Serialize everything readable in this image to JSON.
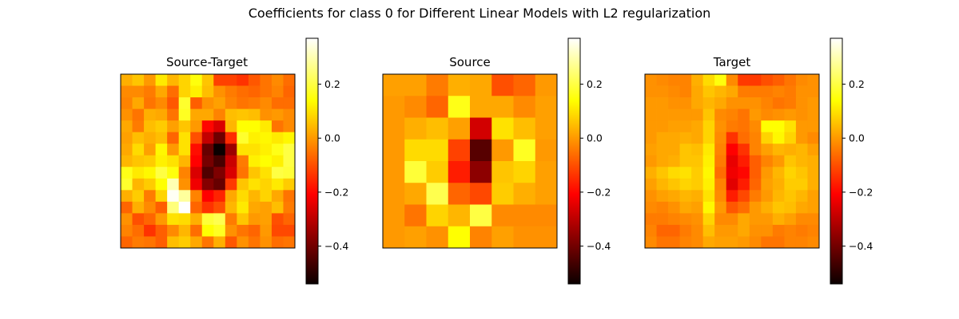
{
  "title": "Coefficients for class 0 for Different Linear Models with L2 regularization",
  "colorscale": {
    "name": "hot",
    "vmin": -0.54,
    "vmax": 0.37,
    "ticks": [
      0.2,
      0.0,
      -0.2,
      -0.4
    ],
    "tick_labels": [
      "0.2",
      "0.0",
      "−0.2",
      "−0.4"
    ]
  },
  "chart_data": [
    {
      "type": "heatmap",
      "title": "Source-Target",
      "xticks": [],
      "yticks": [],
      "values": [
        [
          0.03,
          0.06,
          0.0,
          0.11,
          0.04,
          0.08,
          0.15,
          0.06,
          -0.12,
          -0.12,
          -0.14,
          -0.09,
          -0.05,
          -0.02,
          -0.06
        ],
        [
          -0.02,
          -0.02,
          -0.04,
          0.02,
          -0.06,
          0.08,
          0.12,
          0.05,
          -0.01,
          -0.04,
          -0.06,
          -0.07,
          -0.05,
          -0.03,
          -0.07
        ],
        [
          -0.03,
          0.02,
          -0.05,
          -0.02,
          -0.09,
          0.18,
          -0.08,
          -0.01,
          0.01,
          -0.03,
          -0.05,
          -0.04,
          -0.02,
          -0.06,
          -0.06
        ],
        [
          -0.01,
          -0.05,
          0.03,
          0.02,
          -0.05,
          0.17,
          0.02,
          0.02,
          -0.03,
          0.05,
          0.06,
          0.05,
          -0.01,
          0.0,
          -0.02
        ],
        [
          0.02,
          -0.04,
          0.05,
          0.07,
          0.01,
          0.06,
          0.0,
          -0.2,
          -0.27,
          0.04,
          0.14,
          0.14,
          0.11,
          -0.05,
          -0.02
        ],
        [
          0.01,
          0.05,
          0.03,
          0.05,
          -0.07,
          0.1,
          -0.1,
          -0.3,
          -0.41,
          -0.15,
          0.18,
          0.12,
          0.13,
          0.11,
          0.13
        ],
        [
          0.02,
          0.09,
          0.01,
          0.13,
          0.0,
          0.1,
          -0.19,
          -0.42,
          -0.54,
          -0.35,
          0.1,
          0.1,
          0.12,
          0.16,
          0.2
        ],
        [
          0.04,
          0.06,
          0.07,
          0.12,
          0.1,
          0.04,
          -0.21,
          -0.4,
          -0.46,
          -0.29,
          -0.04,
          0.12,
          0.14,
          0.12,
          0.2
        ],
        [
          0.16,
          0.11,
          0.13,
          0.2,
          0.15,
          -0.03,
          -0.27,
          -0.45,
          -0.39,
          -0.27,
          -0.05,
          0.06,
          0.1,
          0.2,
          0.19
        ],
        [
          0.18,
          0.04,
          0.07,
          0.14,
          0.3,
          -0.01,
          -0.24,
          -0.38,
          -0.42,
          -0.13,
          0.06,
          0.1,
          0.08,
          0.11,
          0.07
        ],
        [
          0.03,
          0.07,
          -0.04,
          0.08,
          0.36,
          0.28,
          -0.03,
          -0.22,
          -0.16,
          0.02,
          0.09,
          0.04,
          0.08,
          0.02,
          -0.05
        ],
        [
          -0.07,
          0.03,
          -0.02,
          -0.08,
          0.25,
          0.37,
          -0.07,
          -0.14,
          -0.1,
          0.04,
          0.11,
          0.02,
          0.01,
          0.05,
          -0.04
        ],
        [
          -0.01,
          -0.1,
          -0.07,
          0.0,
          0.1,
          0.09,
          0.03,
          0.19,
          0.21,
          -0.04,
          0.06,
          0.0,
          0.01,
          -0.1,
          -0.07
        ],
        [
          -0.03,
          -0.06,
          -0.14,
          -0.08,
          -0.02,
          0.04,
          -0.06,
          0.14,
          0.17,
          -0.01,
          -0.05,
          -0.07,
          0.0,
          -0.11,
          -0.11
        ],
        [
          -0.07,
          -0.04,
          -0.05,
          -0.08,
          0.05,
          0.07,
          0.02,
          -0.05,
          0.03,
          -0.09,
          -0.01,
          -0.05,
          -0.01,
          -0.06,
          -0.05
        ]
      ]
    },
    {
      "type": "heatmap",
      "title": "Source",
      "xticks": [],
      "yticks": [],
      "values": [
        [
          0.01,
          0.01,
          -0.04,
          0.03,
          0.02,
          -0.1,
          -0.07,
          0.0
        ],
        [
          0.0,
          -0.02,
          -0.07,
          0.16,
          0.02,
          0.02,
          -0.02,
          0.01
        ],
        [
          0.0,
          0.03,
          0.05,
          0.01,
          -0.28,
          0.1,
          0.05,
          0.01
        ],
        [
          0.0,
          0.09,
          0.09,
          -0.12,
          -0.44,
          0.0,
          0.17,
          0.0
        ],
        [
          0.0,
          0.19,
          0.07,
          -0.17,
          -0.37,
          0.06,
          0.08,
          0.01
        ],
        [
          0.0,
          0.02,
          0.21,
          -0.07,
          -0.11,
          0.07,
          0.03,
          0.01
        ],
        [
          0.0,
          -0.05,
          0.08,
          0.04,
          0.2,
          -0.02,
          -0.02,
          -0.02
        ],
        [
          0.0,
          0.01,
          -0.01,
          0.14,
          -0.03,
          0.01,
          -0.01,
          -0.01
        ]
      ]
    },
    {
      "type": "heatmap",
      "title": "Target",
      "xticks": [],
      "yticks": [],
      "values": [
        [
          -0.01,
          -0.02,
          -0.03,
          -0.03,
          0.03,
          0.09,
          0.15,
          -0.02,
          -0.13,
          -0.13,
          -0.1,
          -0.08,
          -0.05,
          -0.02,
          -0.01
        ],
        [
          -0.01,
          -0.01,
          -0.02,
          -0.03,
          0.02,
          0.06,
          0.04,
          0.02,
          -0.04,
          -0.04,
          -0.04,
          -0.03,
          -0.04,
          -0.01,
          -0.01
        ],
        [
          0.0,
          0.0,
          -0.01,
          -0.01,
          0.02,
          0.04,
          0.02,
          -0.01,
          -0.01,
          -0.01,
          -0.03,
          -0.05,
          -0.04,
          -0.01,
          0.0
        ],
        [
          0.0,
          0.0,
          0.0,
          0.0,
          0.0,
          0.06,
          -0.02,
          -0.03,
          -0.05,
          0.0,
          -0.02,
          -0.01,
          0.0,
          -0.01,
          0.0
        ],
        [
          0.0,
          0.0,
          0.01,
          0.01,
          0.02,
          0.08,
          -0.01,
          -0.04,
          -0.05,
          -0.02,
          0.14,
          0.14,
          0.1,
          0.0,
          0.0
        ],
        [
          0.0,
          0.02,
          0.02,
          0.03,
          0.02,
          0.08,
          -0.02,
          -0.14,
          -0.06,
          -0.03,
          0.08,
          0.13,
          0.08,
          0.0,
          -0.02
        ],
        [
          0.01,
          0.02,
          0.02,
          0.06,
          0.05,
          0.11,
          -0.03,
          -0.21,
          -0.14,
          -0.03,
          0.01,
          0.04,
          0.03,
          0.04,
          0.01
        ],
        [
          0.0,
          0.02,
          0.03,
          0.06,
          0.06,
          0.12,
          -0.04,
          -0.25,
          -0.17,
          -0.08,
          -0.03,
          0.0,
          0.06,
          0.04,
          0.03
        ],
        [
          0.03,
          0.06,
          0.09,
          0.1,
          0.07,
          0.13,
          -0.06,
          -0.24,
          -0.2,
          -0.08,
          0.0,
          0.04,
          0.08,
          0.06,
          0.03
        ],
        [
          0.01,
          0.04,
          0.06,
          0.08,
          0.07,
          0.12,
          -0.03,
          -0.26,
          -0.17,
          -0.07,
          0.01,
          0.03,
          0.07,
          0.07,
          0.03
        ],
        [
          -0.01,
          0.01,
          0.02,
          0.04,
          0.03,
          0.1,
          -0.02,
          -0.17,
          -0.11,
          -0.04,
          0.0,
          0.04,
          0.06,
          0.04,
          0.01
        ],
        [
          -0.02,
          -0.03,
          -0.01,
          0.02,
          0.01,
          0.13,
          0.0,
          -0.09,
          -0.06,
          0.0,
          0.03,
          0.06,
          0.05,
          0.02,
          0.01
        ],
        [
          -0.04,
          -0.04,
          -0.03,
          -0.02,
          -0.01,
          0.08,
          -0.02,
          -0.02,
          0.02,
          0.0,
          0.0,
          0.03,
          0.01,
          -0.02,
          -0.02
        ],
        [
          -0.03,
          -0.07,
          -0.07,
          -0.04,
          -0.02,
          0.05,
          0.0,
          0.0,
          0.02,
          -0.01,
          -0.01,
          -0.04,
          -0.03,
          -0.04,
          -0.03
        ],
        [
          -0.02,
          -0.05,
          -0.05,
          -0.03,
          -0.02,
          0.02,
          0.01,
          0.01,
          0.0,
          -0.02,
          -0.05,
          -0.05,
          -0.03,
          -0.03,
          -0.02
        ]
      ]
    }
  ]
}
